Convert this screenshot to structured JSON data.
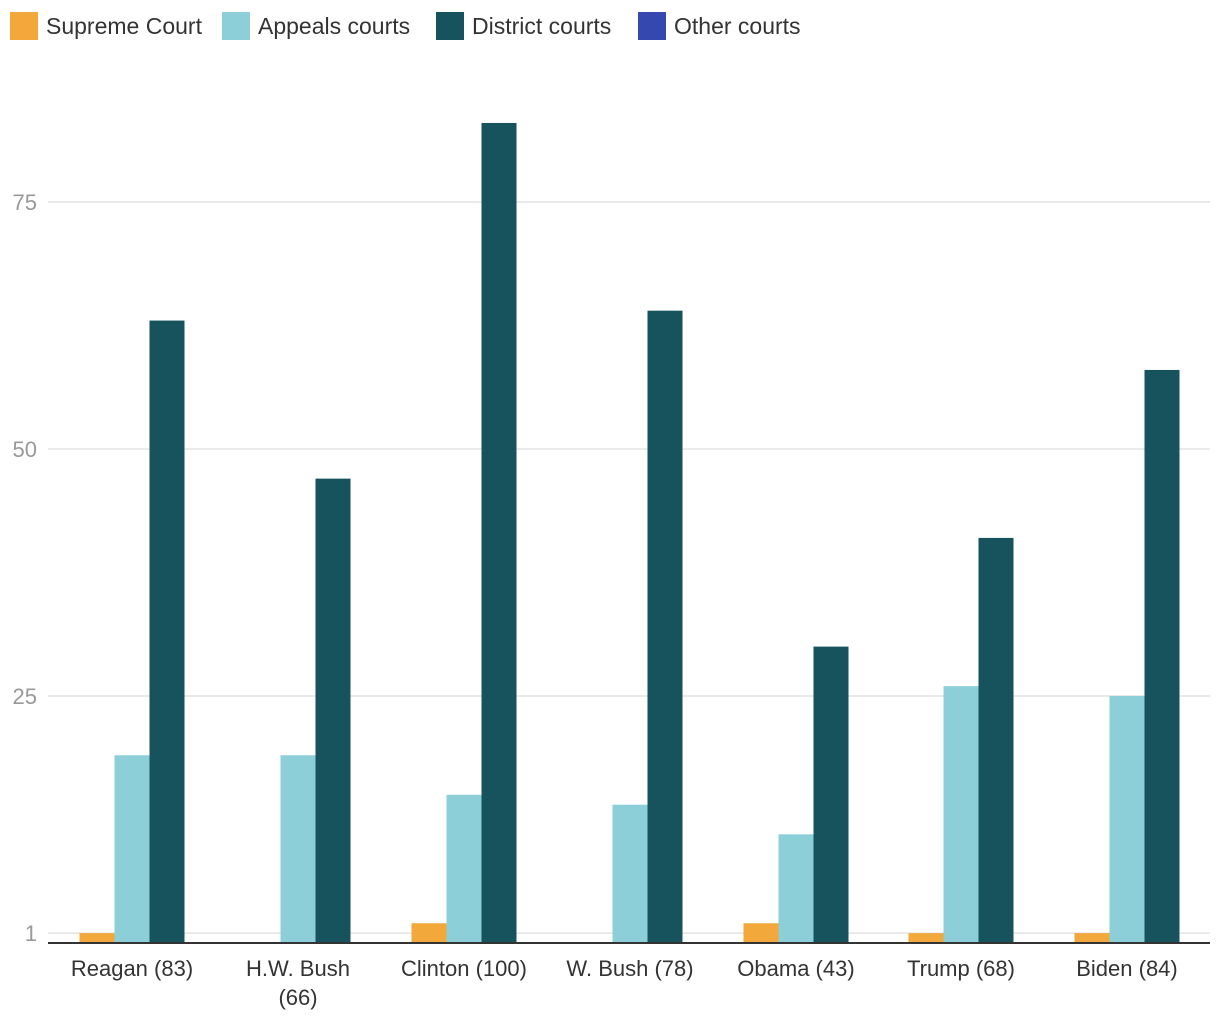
{
  "chart_data": {
    "type": "bar",
    "title": "",
    "xlabel": "",
    "ylabel": "",
    "categories": [
      "Reagan (83)",
      "H.W. Bush (66)",
      "Clinton (100)",
      "W. Bush (78)",
      "Obama (43)",
      "Trump (68)",
      "Biden (84)"
    ],
    "category_lines": [
      [
        "Reagan (83)"
      ],
      [
        "H.W. Bush",
        "(66)"
      ],
      [
        "Clinton (100)"
      ],
      [
        "W. Bush (78)"
      ],
      [
        "Obama (43)"
      ],
      [
        "Trump (68)"
      ],
      [
        "Biden (84)"
      ]
    ],
    "series": [
      {
        "name": "Supreme Court",
        "color": "#f2a83b",
        "values": [
          1,
          0,
          2,
          0,
          2,
          1,
          1
        ]
      },
      {
        "name": "Appeals courts",
        "color": "#8ccfd8",
        "values": [
          19,
          19,
          15,
          14,
          11,
          26,
          25
        ]
      },
      {
        "name": "District courts",
        "color": "#16535c",
        "values": [
          63,
          47,
          83,
          64,
          30,
          41,
          58
        ]
      },
      {
        "name": "Other courts",
        "color": "#3548b0",
        "values": [
          0,
          0,
          0,
          0,
          0,
          0,
          0
        ]
      }
    ],
    "yticks": [
      1,
      25,
      50,
      75
    ],
    "ylim": [
      0,
      85
    ],
    "grid": true,
    "legend_position": "top-left"
  }
}
